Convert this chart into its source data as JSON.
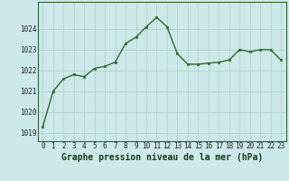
{
  "x": [
    0,
    1,
    2,
    3,
    4,
    5,
    6,
    7,
    8,
    9,
    10,
    11,
    12,
    13,
    14,
    15,
    16,
    17,
    18,
    19,
    20,
    21,
    22,
    23
  ],
  "y": [
    1019.3,
    1021.0,
    1021.6,
    1021.8,
    1021.7,
    1022.1,
    1022.2,
    1022.4,
    1023.3,
    1023.6,
    1024.1,
    1024.55,
    1024.1,
    1022.8,
    1022.3,
    1022.3,
    1022.35,
    1022.4,
    1022.5,
    1023.0,
    1022.9,
    1023.0,
    1023.0,
    1022.5
  ],
  "line_color": "#2d6a2d",
  "marker_color": "#2d6a2d",
  "bg_color": "#cce8e8",
  "grid_color": "#aacccc",
  "xlabel": "Graphe pression niveau de la mer (hPa)",
  "xlabel_fontsize": 7,
  "ylabel_ticks": [
    1019,
    1020,
    1021,
    1022,
    1023,
    1024
  ],
  "xlim": [
    -0.5,
    23.5
  ],
  "ylim": [
    1018.6,
    1025.3
  ],
  "border_color": "#336633",
  "tick_fontsize": 5.5,
  "line_width": 1.0,
  "marker_size": 2.0
}
